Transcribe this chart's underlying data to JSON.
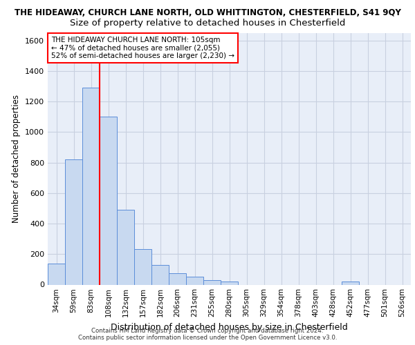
{
  "title1": "THE HIDEAWAY, CHURCH LANE NORTH, OLD WHITTINGTON, CHESTERFIELD, S41 9QY",
  "title2": "Size of property relative to detached houses in Chesterfield",
  "xlabel": "Distribution of detached houses by size in Chesterfield",
  "ylabel": "Number of detached properties",
  "footnote1": "Contains HM Land Registry data © Crown copyright and database right 2024.",
  "footnote2": "Contains public sector information licensed under the Open Government Licence v3.0.",
  "bar_values": [
    140,
    820,
    1290,
    1100,
    490,
    235,
    130,
    75,
    50,
    30,
    20,
    0,
    0,
    0,
    0,
    0,
    0,
    20,
    0,
    0,
    0
  ],
  "bin_labels": [
    "34sqm",
    "59sqm",
    "83sqm",
    "108sqm",
    "132sqm",
    "157sqm",
    "182sqm",
    "206sqm",
    "231sqm",
    "255sqm",
    "280sqm",
    "305sqm",
    "329sqm",
    "354sqm",
    "378sqm",
    "403sqm",
    "428sqm",
    "452sqm",
    "477sqm",
    "501sqm",
    "526sqm"
  ],
  "bar_color": "#c8d9f0",
  "bar_edge_color": "#5b8dd9",
  "annotation_text": "THE HIDEAWAY CHURCH LANE NORTH: 105sqm\n← 47% of detached houses are smaller (2,055)\n52% of semi-detached houses are larger (2,230) →",
  "annotation_box_color": "white",
  "annotation_box_edge": "red",
  "line_color": "red",
  "ylim": [
    0,
    1650
  ],
  "yticks": [
    0,
    200,
    400,
    600,
    800,
    1000,
    1200,
    1400,
    1600
  ],
  "bg_color": "#e8eef8",
  "grid_color": "#c8d0e0",
  "title1_fontsize": 8.5,
  "title2_fontsize": 9.5
}
